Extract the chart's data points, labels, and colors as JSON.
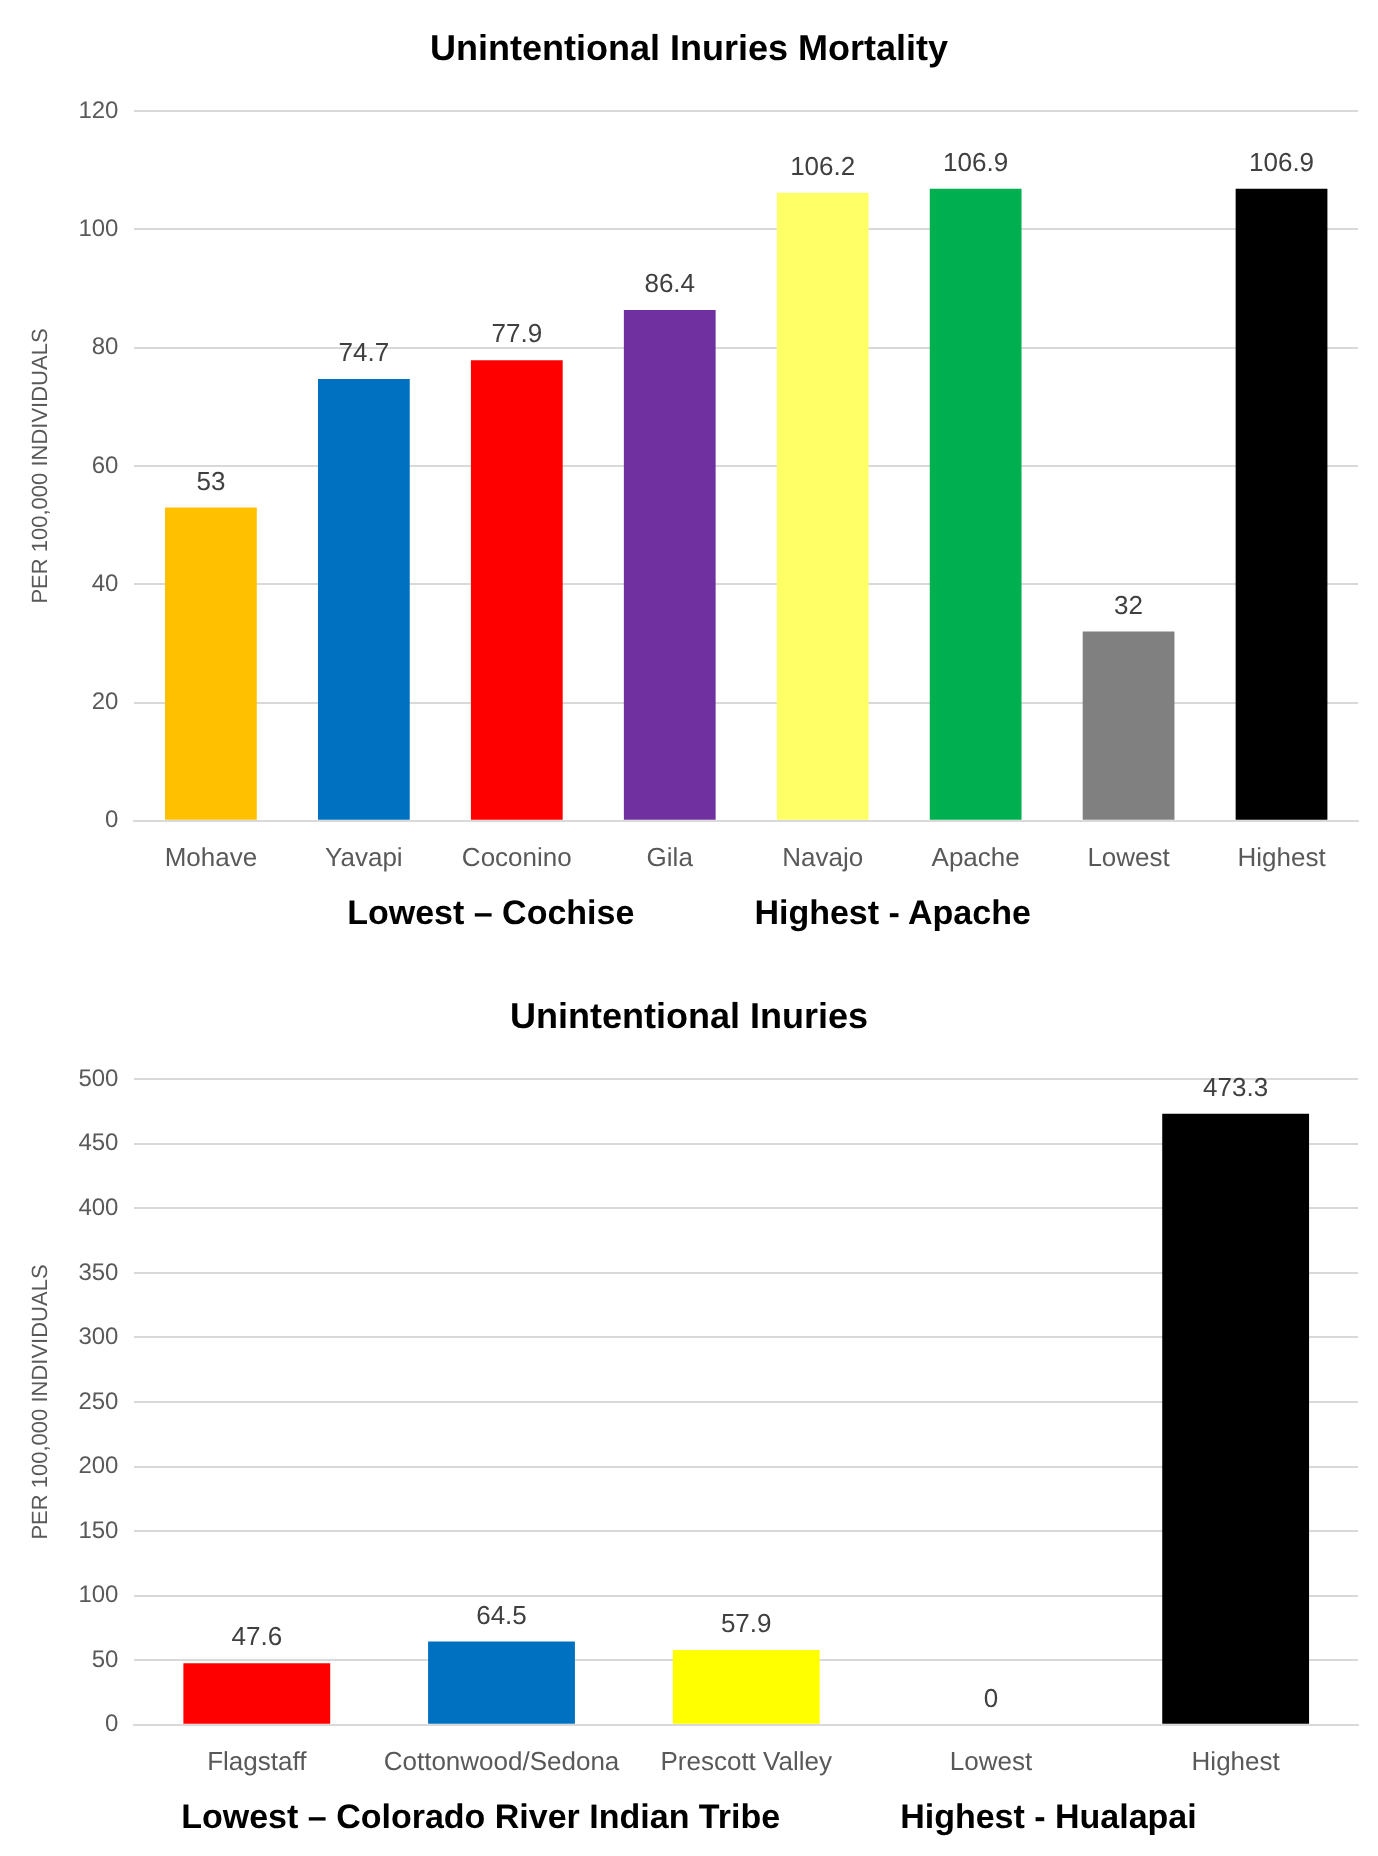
{
  "chart_data": [
    {
      "type": "bar",
      "title": "Unintentional Inuries Mortality",
      "ylabel": "PER 100,000 INDIVIDUALS",
      "categories": [
        "Mohave",
        "Yavapi",
        "Coconino",
        "Gila",
        "Navajo",
        "Apache",
        "Lowest",
        "Highest"
      ],
      "values": [
        53,
        74.7,
        77.9,
        86.4,
        106.2,
        106.9,
        32,
        106.9
      ],
      "colors": [
        "#ffc000",
        "#0070c0",
        "#ff0000",
        "#7030a0",
        "#ffff66",
        "#00b050",
        "#808080",
        "#000000"
      ],
      "ylim": [
        0,
        120
      ],
      "yticks": [
        0,
        20,
        40,
        60,
        80,
        100,
        120
      ],
      "grid": "y",
      "data_labels": true,
      "legend": false,
      "annotations": [
        "Lowest – Cochise",
        "Highest - Apache"
      ]
    },
    {
      "type": "bar",
      "title": "Unintentional Inuries",
      "ylabel": "PER 100,000 INDIVIDUALS",
      "categories": [
        "Flagstaff",
        "Cottonwood/Sedona",
        "Prescott Valley",
        "Lowest",
        "Highest"
      ],
      "values": [
        47.6,
        64.5,
        57.9,
        0,
        473.3
      ],
      "colors": [
        "#ff0000",
        "#0070c0",
        "#ffff00",
        "#808080",
        "#000000"
      ],
      "ylim": [
        0,
        500
      ],
      "yticks": [
        0,
        50,
        100,
        150,
        200,
        250,
        300,
        350,
        400,
        450,
        500
      ],
      "grid": "y",
      "data_labels": true,
      "legend": false,
      "annotations": [
        "Lowest – Colorado River Indian Tribe",
        "Highest - Hualapai"
      ]
    }
  ]
}
